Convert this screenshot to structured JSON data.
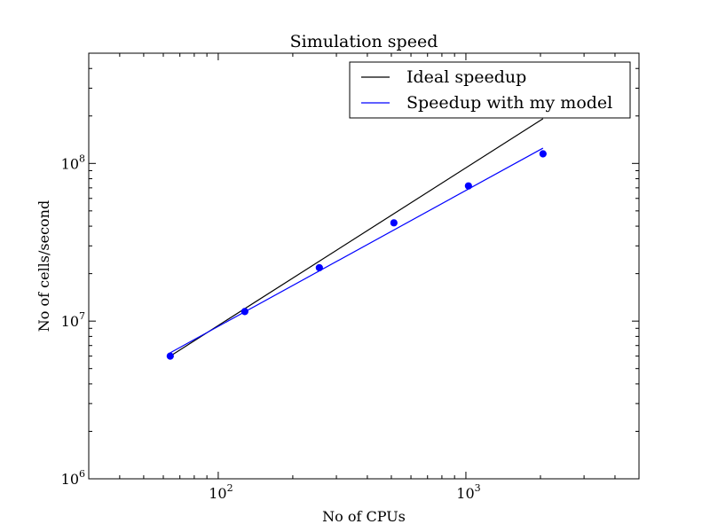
{
  "chart_data": {
    "type": "line",
    "title": "Simulation speed",
    "xlabel": "No of CPUs",
    "ylabel": "No of cells/second",
    "xscale": "log",
    "yscale": "log",
    "xlim": [
      30,
      5000
    ],
    "ylim": [
      1000000,
      500000000
    ],
    "x_tick_labels": [
      {
        "value": 100,
        "base": "10",
        "exp": "2"
      },
      {
        "value": 1000,
        "base": "10",
        "exp": "3"
      }
    ],
    "y_tick_labels": [
      {
        "value": 1000000,
        "base": "10",
        "exp": "6"
      },
      {
        "value": 10000000,
        "base": "10",
        "exp": "7"
      },
      {
        "value": 100000000,
        "base": "10",
        "exp": "8"
      }
    ],
    "grid": false,
    "legend_position": "top-right",
    "series": [
      {
        "name": "Ideal speedup",
        "style": "line",
        "color": "#000000",
        "x": [
          64,
          2048
        ],
        "y": [
          6000000,
          192000000
        ]
      },
      {
        "name": "Speedup with my model",
        "style": "line",
        "color": "#0000ff",
        "x": [
          64,
          2048
        ],
        "y": [
          6300000,
          125000000
        ]
      },
      {
        "name": "",
        "style": "markers",
        "color": "#0000ff",
        "x": [
          64,
          128,
          256,
          512,
          1024,
          2048
        ],
        "y": [
          6000000,
          11500000,
          21800000,
          42000000,
          72000000,
          115000000
        ]
      }
    ]
  }
}
